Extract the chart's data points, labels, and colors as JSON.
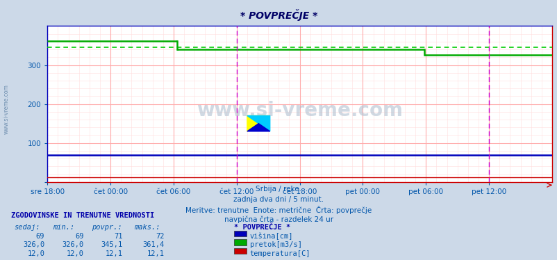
{
  "title": "* POVPREČJE *",
  "bg_color": "#ccd9e8",
  "plot_bg_color": "#ffffff",
  "xlim": [
    0,
    576
  ],
  "ylim": [
    0,
    400
  ],
  "yticks": [
    0,
    100,
    200,
    300
  ],
  "xtick_labels": [
    "sre 18:00",
    "čet 00:00",
    "čet 06:00",
    "čet 12:00",
    "čet 18:00",
    "pet 00:00",
    "pet 06:00",
    "pet 12:00"
  ],
  "xtick_positions": [
    0,
    72,
    144,
    216,
    288,
    360,
    432,
    504
  ],
  "subtitle_lines": [
    "Srbija / reke.",
    "zadnja dva dni / 5 minut.",
    "Meritve: trenutne  Enote: metrične  Črta: povprečje",
    "navpična črta - razdelek 24 ur"
  ],
  "watermark": "www.si-vreme.com",
  "legend_title": "* POVPREČJE *",
  "legend_items": [
    {
      "label": "višina[cm]",
      "color": "#0000bb"
    },
    {
      "label": "pretok[m3/s]",
      "color": "#00aa00"
    },
    {
      "label": "temperatura[C]",
      "color": "#cc0000"
    }
  ],
  "table_header": [
    "sedaj:",
    "min.:",
    "povpr.:",
    "maks.:"
  ],
  "table_rows": [
    [
      "69",
      "69",
      "71",
      "72"
    ],
    [
      "326,0",
      "326,0",
      "345,1",
      "361,4"
    ],
    [
      "12,0",
      "12,0",
      "12,1",
      "12,1"
    ]
  ],
  "hist_label": "ZGODOVINSKE IN TRENUTNE VREDNOSTI",
  "višina_y": 69,
  "pretok_segments": [
    {
      "x_start": 0,
      "x_end": 148,
      "y": 361
    },
    {
      "x_start": 148,
      "x_end": 430,
      "y": 340
    },
    {
      "x_start": 430,
      "x_end": 576,
      "y": 326
    }
  ],
  "pretok_dotted_y": 345,
  "višina_color": "#0000bb",
  "pretok_color": "#00aa00",
  "pretok_dotted_color": "#00cc00",
  "temp_color": "#cc0000",
  "navpicna_crta_x": 216,
  "navpicna_crta2_x": 504,
  "border_color": "#cc0000",
  "tick_color": "#0055aa",
  "font_color": "#0055aa",
  "grid_major_color": "#ffaaaa",
  "grid_minor_color": "#ffdddd",
  "left_watermark": "www.si-vreme.com"
}
